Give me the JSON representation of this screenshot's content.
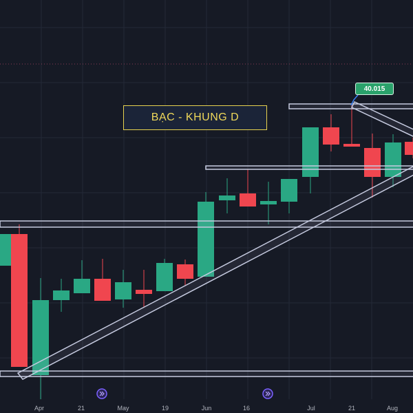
{
  "title_box": {
    "text": "BẠC - KHUNG D"
  },
  "price_badge": {
    "text": "40.015"
  },
  "colors": {
    "background": "#161a25",
    "up": "#2aa884",
    "down": "#f0464f",
    "level_line": "#c6cbe0",
    "accent": "#f0d95a"
  },
  "chart_data": {
    "type": "candlestick",
    "title": "BẠC - KHUNG D",
    "x_tick_labels": [
      "Apr",
      "21",
      "May",
      "19",
      "Jun",
      "16",
      "Jul",
      "21",
      "Aug"
    ],
    "candles": [
      {
        "o": 0.0,
        "h": 0.0,
        "l": 0.0,
        "c": 0.0,
        "dir": "up"
      },
      {
        "o": 0.0,
        "h": 0.0,
        "l": 0.0,
        "c": 0.0,
        "dir": "down"
      }
    ],
    "grid": true
  },
  "badges": {
    "replay_icon": "replay-icon"
  }
}
